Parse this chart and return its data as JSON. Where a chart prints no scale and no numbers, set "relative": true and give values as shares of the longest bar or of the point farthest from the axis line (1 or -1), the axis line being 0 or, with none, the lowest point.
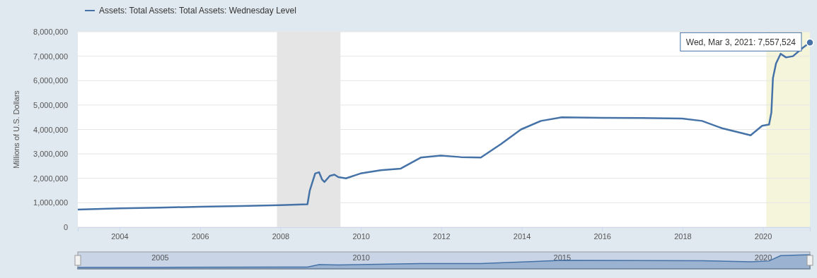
{
  "chart_data": [
    {
      "type": "line",
      "ylabel": "Millions of U.S. Dollars",
      "legend": "top left",
      "grid": "y",
      "marker": "none",
      "line_style": "solid",
      "x": [
        "2002-12-18",
        "2004-01-07",
        "2005-01-05",
        "2006-01-04",
        "2007-01-03",
        "2008-01-02",
        "2008-09-03",
        "2008-09-24",
        "2008-10-15",
        "2008-11-12",
        "2008-12-17",
        "2009-01-14",
        "2009-02-04",
        "2009-03-25",
        "2009-05-06",
        "2009-06-10",
        "2009-08-19",
        "2009-12-30",
        "2010-06-30",
        "2010-12-29",
        "2011-06-29",
        "2011-12-28",
        "2012-06-27",
        "2012-12-26",
        "2013-06-26",
        "2013-12-25",
        "2014-06-25",
        "2014-12-31",
        "2015-12-30",
        "2016-12-28",
        "2017-12-27",
        "2018-06-27",
        "2018-12-26",
        "2019-06-26",
        "2019-09-11",
        "2019-12-25",
        "2020-02-26",
        "2020-03-18",
        "2020-04-01",
        "2020-04-29",
        "2020-06-10",
        "2020-07-29",
        "2020-09-30",
        "2020-12-30",
        "2021-03-03"
      ],
      "series": [
        {
          "name": "Assets: Total Assets: Total Assets: Wednesday Level",
          "color": "#4572a7",
          "values": [
            720000,
            770000,
            800000,
            840000,
            870000,
            900000,
            940000,
            1500000,
            1800000,
            2200000,
            2250000,
            1950000,
            1850000,
            2100000,
            2150000,
            2050000,
            2000000,
            2200000,
            2330000,
            2400000,
            2850000,
            2930000,
            2870000,
            2850000,
            3400000,
            4000000,
            4350000,
            4500000,
            4480000,
            4470000,
            4450000,
            4350000,
            4050000,
            3850000,
            3760000,
            4150000,
            4200000,
            4700000,
            6100000,
            6700000,
            7100000,
            6950000,
            7000000,
            7350000,
            7557524
          ]
        }
      ],
      "xlim": [
        "2002-12-18",
        "2021-03-03"
      ],
      "xticks": [
        {
          "value": "2004-01-01",
          "label": "2004"
        },
        {
          "value": "2006-01-01",
          "label": "2006"
        },
        {
          "value": "2008-01-01",
          "label": "2008"
        },
        {
          "value": "2010-01-01",
          "label": "2010"
        },
        {
          "value": "2012-01-01",
          "label": "2012"
        },
        {
          "value": "2014-01-01",
          "label": "2014"
        },
        {
          "value": "2016-01-01",
          "label": "2016"
        },
        {
          "value": "2018-01-01",
          "label": "2018"
        },
        {
          "value": "2020-01-01",
          "label": "2020"
        }
      ],
      "ylim": [
        0,
        8000000
      ],
      "yticks": [
        {
          "value": 0,
          "label": "0"
        },
        {
          "value": 1000000,
          "label": "1,000,000"
        },
        {
          "value": 2000000,
          "label": "2,000,000"
        },
        {
          "value": 3000000,
          "label": "3,000,000"
        },
        {
          "value": 4000000,
          "label": "4,000,000"
        },
        {
          "value": 5000000,
          "label": "5,000,000"
        },
        {
          "value": 6000000,
          "label": "6,000,000"
        },
        {
          "value": 7000000,
          "label": "7,000,000"
        },
        {
          "value": 8000000,
          "label": "8,000,000"
        }
      ],
      "bands": [
        {
          "axis": "x",
          "from": "2007-12-01",
          "to": "2009-06-30",
          "color": "#e5e5e5"
        },
        {
          "axis": "x",
          "from": "2020-02-01",
          "to": "2021-03-03",
          "color": "#f5f5dc"
        }
      ],
      "annotations": [
        {
          "text": "Wed, Mar 3, 2021: 7,557,524",
          "x": "2021-03-03",
          "y": 7557524
        }
      ]
    },
    {
      "type": "area",
      "relative": true,
      "tick_labels": "x",
      "x": [
        "2002-12-18",
        "2005-01-05",
        "2008-01-02",
        "2008-09-03",
        "2008-12-17",
        "2009-06-10",
        "2011-06-29",
        "2012-12-26",
        "2014-12-31",
        "2018-06-27",
        "2019-09-11",
        "2020-02-26",
        "2020-06-10",
        "2021-03-03"
      ],
      "series": [
        {
          "color": "#4572a7",
          "values": [
            0.095,
            0.106,
            0.119,
            0.124,
            0.298,
            0.271,
            0.377,
            0.377,
            0.595,
            0.576,
            0.498,
            0.556,
            0.939,
            1
          ]
        }
      ],
      "xlim": [
        "2002-12-18",
        "2021-03-03"
      ],
      "xticks": [
        {
          "value": "2005-01-01",
          "label": "2005"
        },
        {
          "value": "2010-01-01",
          "label": "2010"
        },
        {
          "value": "2015-01-01",
          "label": "2015"
        },
        {
          "value": "2020-01-01",
          "label": "2020"
        }
      ]
    }
  ]
}
